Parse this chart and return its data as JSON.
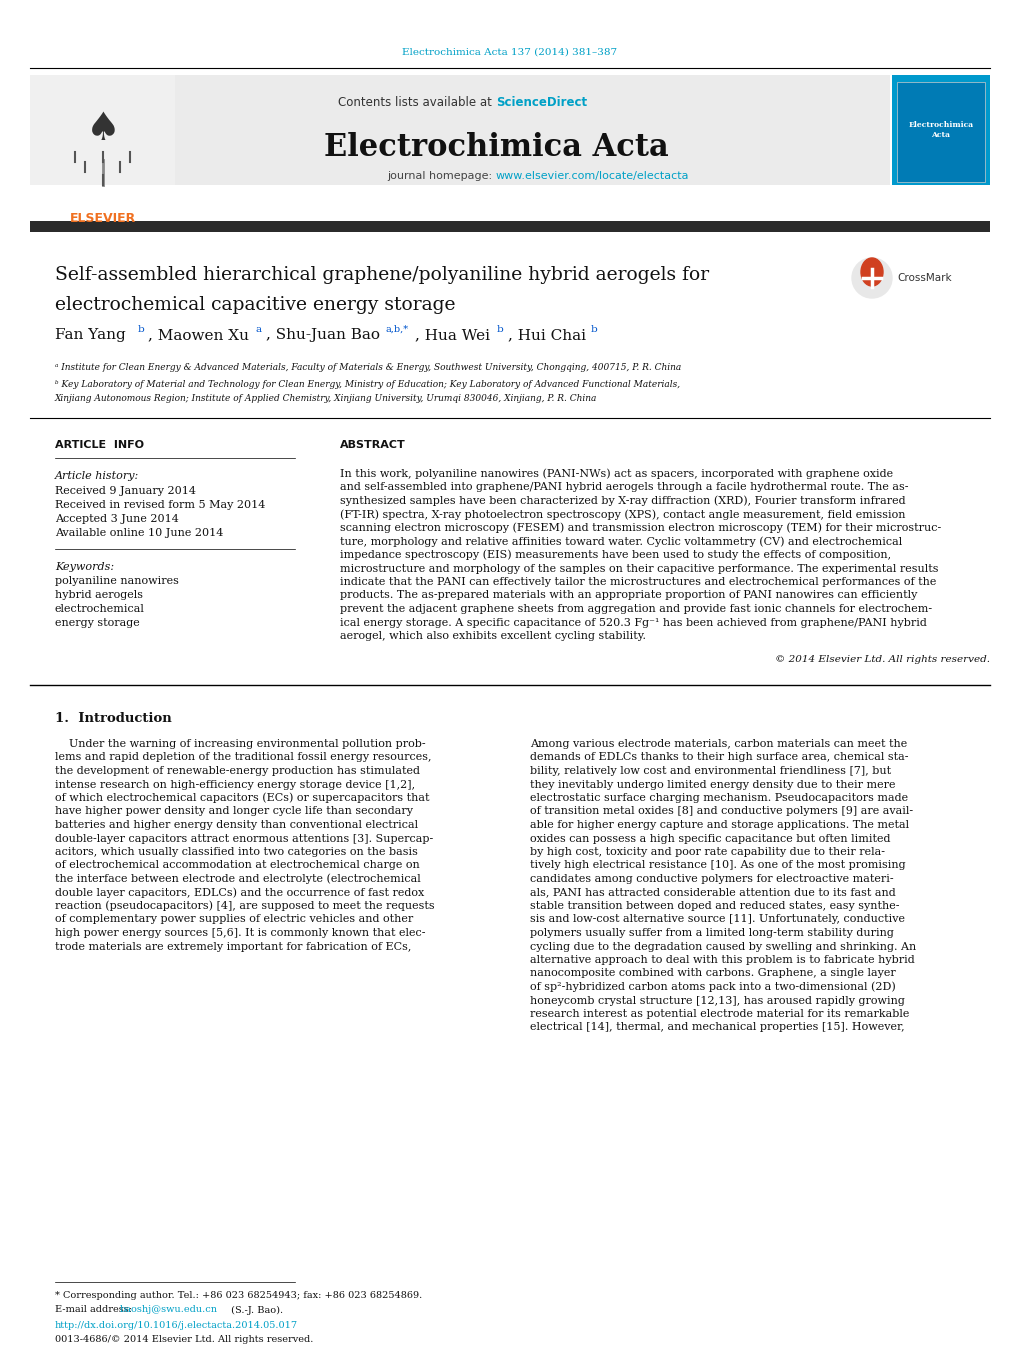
{
  "page_bg": "#ffffff",
  "top_journal_ref": "Electrochimica Acta 137 (2014) 381–387",
  "top_journal_ref_color": "#00a0c6",
  "header_bg": "#e8e8e8",
  "header_text": "Contents lists available at ",
  "header_sciencedirect": "ScienceDirect",
  "header_sciencedirect_color": "#00a0c6",
  "journal_name": "Electrochimica Acta",
  "journal_homepage_label": "journal homepage: ",
  "journal_url": "www.elsevier.com/locate/electacta",
  "journal_url_color": "#00a0c6",
  "dark_bar_color": "#2b2b2b",
  "elsevier_color": "#f07020",
  "article_info_title": "ARTICLE  INFO",
  "abstract_title": "ABSTRACT",
  "article_history_label": "Article history:",
  "received1": "Received 9 January 2014",
  "received2": "Received in revised form 5 May 2014",
  "accepted": "Accepted 3 June 2014",
  "available": "Available online 10 June 2014",
  "keywords_label": "Keywords:",
  "keyword1": "polyaniline nanowires",
  "keyword2": "hybrid aerogels",
  "keyword3": "electrochemical",
  "keyword4": "energy storage",
  "affil_a": "ᵃ Institute for Clean Energy & Advanced Materials, Faculty of Materials & Energy, Southwest University, Chongqing, 400715, P. R. China",
  "affil_b1": "ᵇ Key Laboratory of Material and Technology for Clean Energy, Ministry of Education; Key Laboratory of Advanced Functional Materials,",
  "affil_b2": "Xinjiang Autonomous Region; Institute of Applied Chemistry, Xinjiang University, Urumqi 830046, Xinjiang, P. R. China",
  "copyright": "© 2014 Elsevier Ltd. All rights reserved.",
  "section1_title": "1.  Introduction",
  "footer_corresponding": "* Corresponding author. Tel.: +86 023 68254943; fax: +86 023 68254869.",
  "footer_email_label": "E-mail address: ",
  "footer_email": "baoshj@swu.edu.cn",
  "footer_email_rest": " (S.-J. Bao).",
  "footer_doi": "http://dx.doi.org/10.1016/j.electacta.2014.05.017",
  "footer_issn": "0013-4686/© 2014 Elsevier Ltd. All rights reserved.",
  "abstract_lines": [
    "In this work, polyaniline nanowires (PANI-NWs) act as spacers, incorporated with graphene oxide",
    "and self-assembled into graphene/PANI hybrid aerogels through a facile hydrothermal route. The as-",
    "synthesized samples have been characterized by X-ray diffraction (XRD), Fourier transform infrared",
    "(FT-IR) spectra, X-ray photoelectron spectroscopy (XPS), contact angle measurement, field emission",
    "scanning electron microscopy (FESEM) and transmission electron microscopy (TEM) for their microstruc-",
    "ture, morphology and relative affinities toward water. Cyclic voltammetry (CV) and electrochemical",
    "impedance spectroscopy (EIS) measurements have been used to study the effects of composition,",
    "microstructure and morphology of the samples on their capacitive performance. The experimental results",
    "indicate that the PANI can effectively tailor the microstructures and electrochemical performances of the",
    "products. The as-prepared materials with an appropriate proportion of PANI nanowires can efficiently",
    "prevent the adjacent graphene sheets from aggregation and provide fast ionic channels for electrochem-",
    "ical energy storage. A specific capacitance of 520.3 Fg⁻¹ has been achieved from graphene/PANI hybrid",
    "aerogel, which also exhibits excellent cycling stability."
  ],
  "intro_left_lines": [
    "    Under the warning of increasing environmental pollution prob-",
    "lems and rapid depletion of the traditional fossil energy resources,",
    "the development of renewable-energy production has stimulated",
    "intense research on high-efficiency energy storage device [1,2],",
    "of which electrochemical capacitors (ECs) or supercapacitors that",
    "have higher power density and longer cycle life than secondary",
    "batteries and higher energy density than conventional electrical",
    "double-layer capacitors attract enormous attentions [3]. Supercap-",
    "acitors, which usually classified into two categories on the basis",
    "of electrochemical accommodation at electrochemical charge on",
    "the interface between electrode and electrolyte (electrochemical",
    "double layer capacitors, EDLCs) and the occurrence of fast redox",
    "reaction (pseudocapacitors) [4], are supposed to meet the requests",
    "of complementary power supplies of electric vehicles and other",
    "high power energy sources [5,6]. It is commonly known that elec-",
    "trode materials are extremely important for fabrication of ECs,"
  ],
  "intro_right_lines": [
    "Among various electrode materials, carbon materials can meet the",
    "demands of EDLCs thanks to their high surface area, chemical sta-",
    "bility, relatively low cost and environmental friendliness [7], but",
    "they inevitably undergo limited energy density due to their mere",
    "electrostatic surface charging mechanism. Pseudocapacitors made",
    "of transition metal oxides [8] and conductive polymers [9] are avail-",
    "able for higher energy capture and storage applications. The metal",
    "oxides can possess a high specific capacitance but often limited",
    "by high cost, toxicity and poor rate capability due to their rela-",
    "tively high electrical resistance [10]. As one of the most promising",
    "candidates among conductive polymers for electroactive materi-",
    "als, PANI has attracted considerable attention due to its fast and",
    "stable transition between doped and reduced states, easy synthe-",
    "sis and low-cost alternative source [11]. Unfortunately, conductive",
    "polymers usually suffer from a limited long-term stability during",
    "cycling due to the degradation caused by swelling and shrinking. An",
    "alternative approach to deal with this problem is to fabricate hybrid",
    "nanocomposite combined with carbons. Graphene, a single layer",
    "of sp²-hybridized carbon atoms pack into a two-dimensional (2D)",
    "honeycomb crystal structure [12,13], has aroused rapidly growing",
    "research interest as potential electrode material for its remarkable",
    "electrical [14], thermal, and mechanical properties [15]. However,"
  ]
}
